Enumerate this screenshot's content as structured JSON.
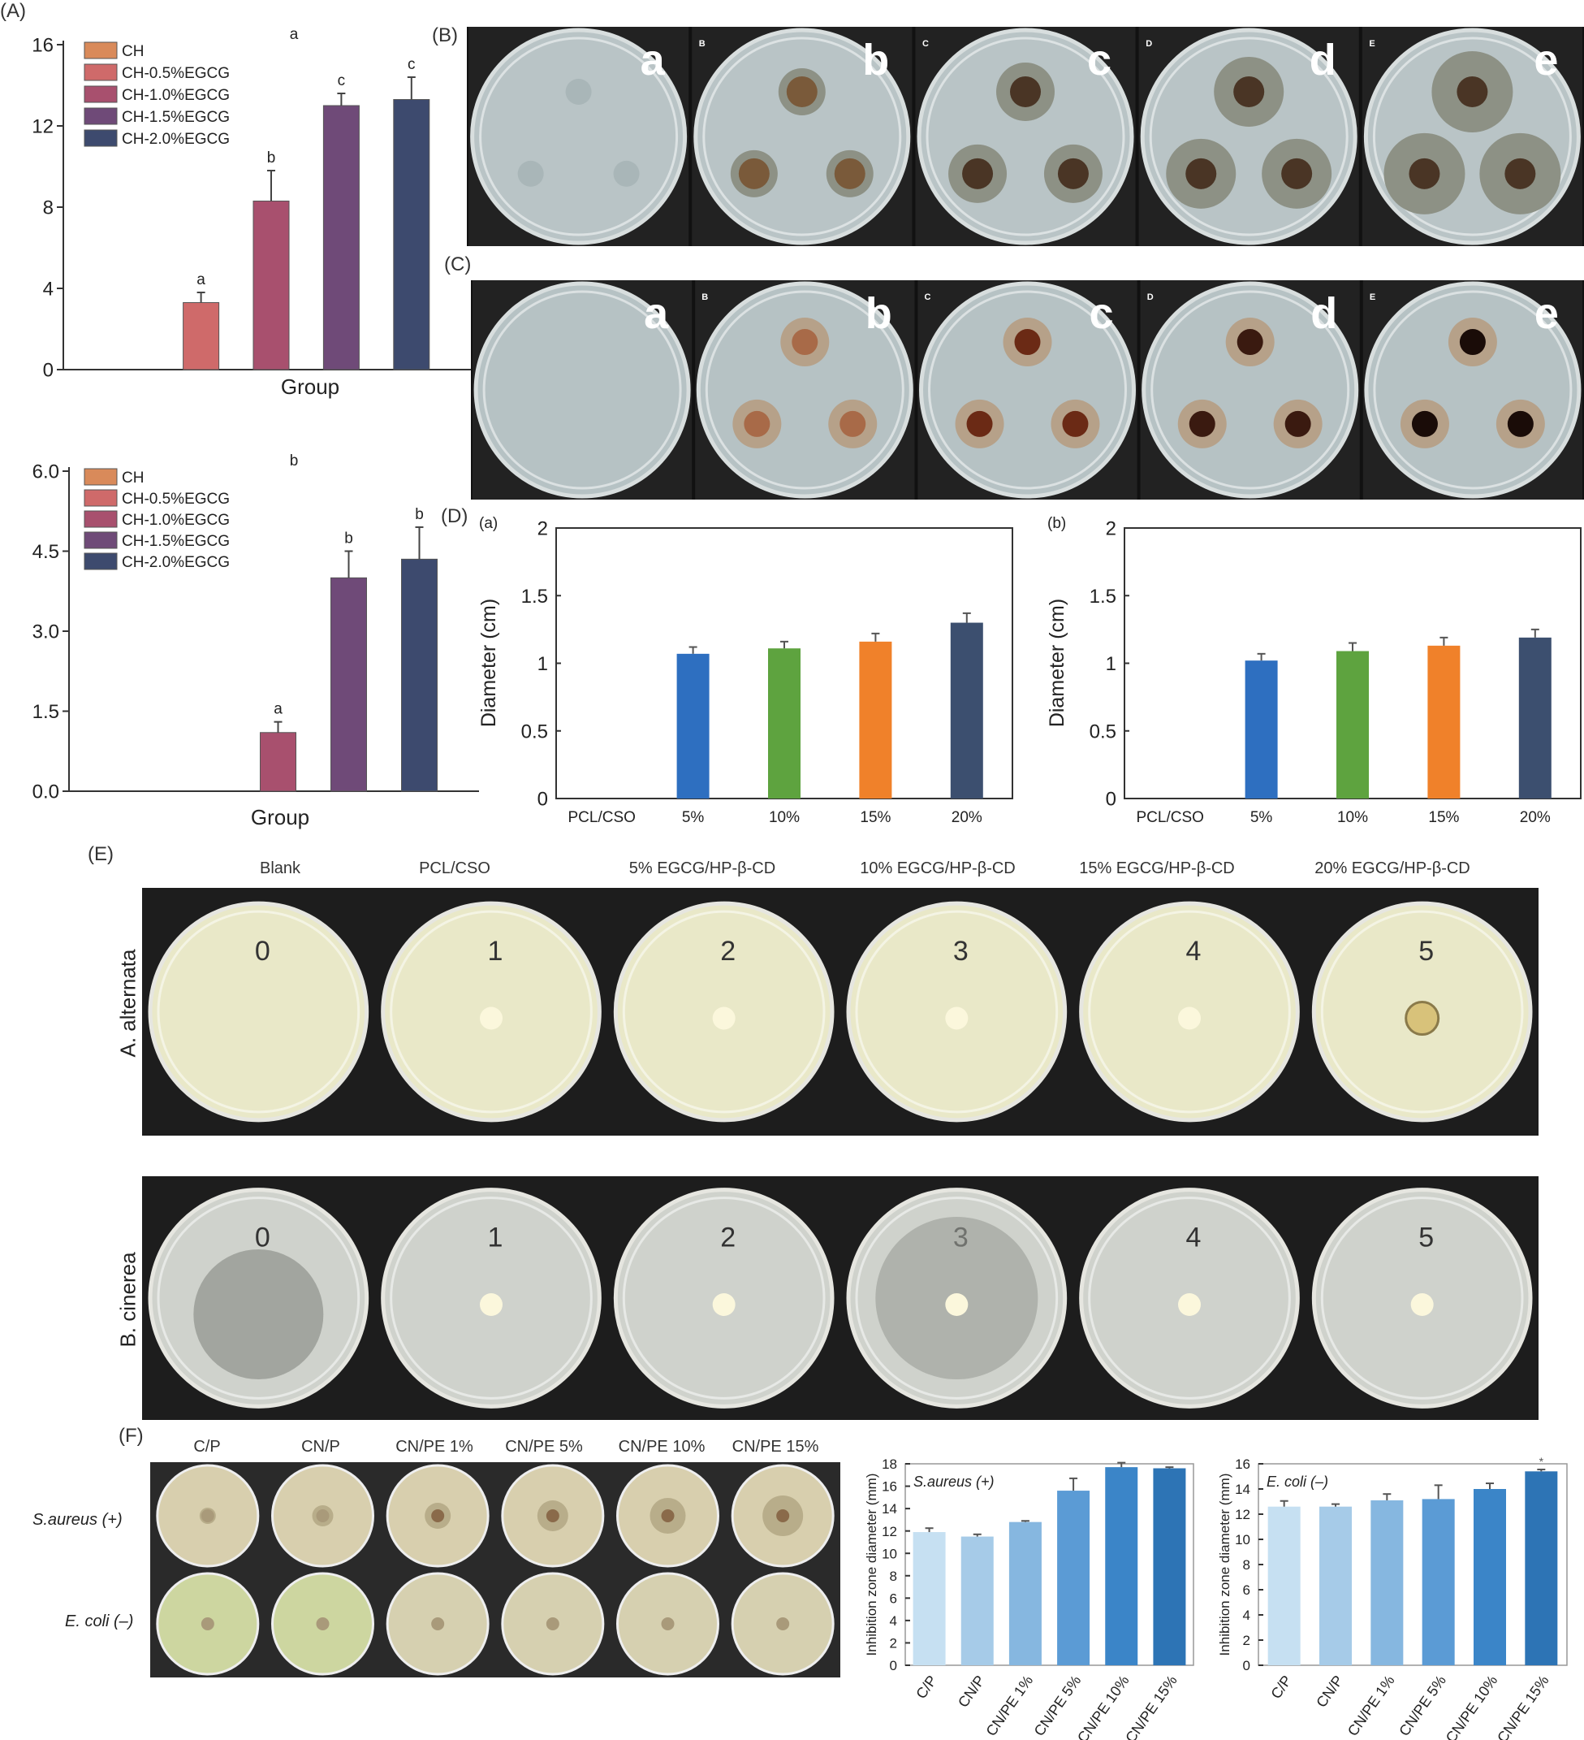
{
  "panels": {
    "A": "(A)",
    "B": "(B)",
    "C": "(C)",
    "D": "(D)",
    "E": "(E)",
    "F": "(F)"
  },
  "letters": [
    "a",
    "b",
    "c",
    "d",
    "e"
  ],
  "letters_caps": [
    "B",
    "C",
    "D",
    "E"
  ],
  "panel_E": {
    "columns": [
      "Blank",
      "PCL/CSO",
      "5% EGCG/HP-β-CD",
      "10% EGCG/HP-β-CD",
      "15% EGCG/HP-β-CD",
      "20% EGCG/HP-β-CD"
    ],
    "rows": [
      "A. alternata",
      "B. cinerea"
    ],
    "plate_numbers": [
      "0",
      "1",
      "2",
      "3",
      "4",
      "5"
    ]
  },
  "panel_F": {
    "columns": [
      "C/P",
      "CN/P",
      "CN/PE 1%",
      "CN/PE 5%",
      "CN/PE 10%",
      "CN/PE 15%"
    ],
    "rows": [
      "S.aureus (+)",
      "E. coli (–)"
    ]
  },
  "colors": {
    "CH": "#d98a5a",
    "CH-0.5%EGCG": "#cf6a6a",
    "CH-1.0%EGCG": "#a8506e",
    "CH-1.5%EGCG": "#6f4a78",
    "CH-2.0%EGCG": "#3d4a6e",
    "d5": "#2e6fc0",
    "d10": "#5ea33f",
    "d15": "#f0812a",
    "d20": "#3c4f6f",
    "F1": "#c6e0f2",
    "F2": "#a6cbe8",
    "F3": "#86b7e0",
    "F4": "#5b9bd5",
    "F5": "#3b85c8",
    "F6": "#2d74b5"
  },
  "chart_data": [
    {
      "id": "A-top",
      "type": "bar",
      "sublabel": "a",
      "xlabel": "Group",
      "ylim": [
        0,
        16
      ],
      "yticks": [
        "0",
        "4",
        "8",
        "12",
        "16"
      ],
      "legend": [
        "CH",
        "CH-0.5%EGCG",
        "CH-1.0%EGCG",
        "CH-1.5%EGCG",
        "CH-2.0%EGCG"
      ],
      "categories": [
        "CH",
        "CH-0.5%EGCG",
        "CH-1.0%EGCG",
        "CH-1.5%EGCG",
        "CH-2.0%EGCG"
      ],
      "values": [
        0,
        3.3,
        8.3,
        13.0,
        13.3
      ],
      "errors": [
        0,
        0.5,
        1.5,
        0.6,
        1.1
      ],
      "sig": [
        "",
        "a",
        "b",
        "c",
        "c"
      ]
    },
    {
      "id": "A-bottom",
      "type": "bar",
      "sublabel": "b",
      "xlabel": "Group",
      "ylim": [
        0,
        6
      ],
      "yticks": [
        "0.0",
        "1.5",
        "3.0",
        "4.5",
        "6.0"
      ],
      "legend": [
        "CH",
        "CH-0.5%EGCG",
        "CH-1.0%EGCG",
        "CH-1.5%EGCG",
        "CH-2.0%EGCG"
      ],
      "categories": [
        "CH",
        "CH-0.5%EGCG",
        "CH-1.0%EGCG",
        "CH-1.5%EGCG",
        "CH-2.0%EGCG"
      ],
      "values": [
        0,
        0,
        1.1,
        4.0,
        4.35
      ],
      "errors": [
        0,
        0,
        0.2,
        0.5,
        0.6
      ],
      "sig": [
        "",
        "",
        "a",
        "b",
        "b"
      ]
    },
    {
      "id": "D-a",
      "type": "bar",
      "sublabel": "(a)",
      "ylabel": "Diameter (cm)",
      "ylim": [
        0,
        2
      ],
      "yticks": [
        "0",
        "0.5",
        "1",
        "1.5",
        "2"
      ],
      "categories": [
        "PCL/CSO",
        "5%",
        "10%",
        "15%",
        "20%"
      ],
      "values": [
        0,
        1.07,
        1.11,
        1.16,
        1.3
      ],
      "errors": [
        0,
        0.05,
        0.05,
        0.06,
        0.07
      ]
    },
    {
      "id": "D-b",
      "type": "bar",
      "sublabel": "(b)",
      "ylabel": "Diameter (cm)",
      "ylim": [
        0,
        2
      ],
      "yticks": [
        "0",
        "0.5",
        "1",
        "1.5",
        "2"
      ],
      "categories": [
        "PCL/CSO",
        "5%",
        "10%",
        "15%",
        "20%"
      ],
      "values": [
        0,
        1.02,
        1.09,
        1.13,
        1.19
      ],
      "errors": [
        0,
        0.05,
        0.06,
        0.06,
        0.06
      ]
    },
    {
      "id": "F-saureus",
      "type": "bar",
      "title": "S.aureus (+)",
      "ylabel": "Inhibition zone diameter (mm)",
      "ylim": [
        0,
        18
      ],
      "yticks": [
        "0",
        "2",
        "4",
        "6",
        "8",
        "10",
        "12",
        "14",
        "16",
        "18"
      ],
      "categories": [
        "C/P",
        "CN/P",
        "CN/PE 1%",
        "CN/PE 5%",
        "CN/PE 10%",
        "CN/PE 15%"
      ],
      "values": [
        11.9,
        11.5,
        12.8,
        15.6,
        17.7,
        17.6
      ],
      "errors": [
        0.35,
        0.2,
        0.1,
        1.1,
        0.4,
        0.1
      ]
    },
    {
      "id": "F-ecoli",
      "type": "bar",
      "title": "E. coli (–)",
      "ylabel": "Inhibition zone diameter (mm)",
      "ylim": [
        0,
        16
      ],
      "yticks": [
        "0",
        "2",
        "4",
        "6",
        "8",
        "10",
        "12",
        "14",
        "16"
      ],
      "categories": [
        "C/P",
        "CN/P",
        "CN/PE 1%",
        "CN/PE 5%",
        "CN/PE 10%",
        "CN/PE 15%"
      ],
      "values": [
        12.6,
        12.6,
        13.1,
        13.2,
        14.0,
        15.4
      ],
      "errors": [
        0.45,
        0.2,
        0.5,
        1.1,
        0.45,
        0.15
      ]
    }
  ]
}
